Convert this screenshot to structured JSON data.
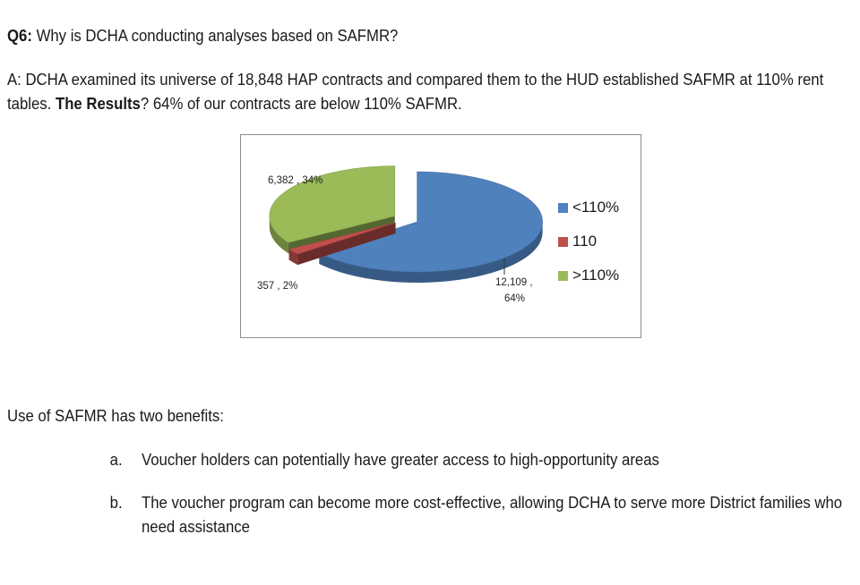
{
  "question": {
    "label": "Q6:",
    "text": " Why is DCHA conducting analyses based on SAFMR?"
  },
  "answer": {
    "text_pre": "A: DCHA examined its universe of 18,848 HAP contracts and compared them to the HUD established SAFMR at 110% rent tables. ",
    "bold": "The Results",
    "text_post": "? 64% of our contracts are below 110% SAFMR."
  },
  "chart_data": {
    "type": "pie",
    "categories": [
      "<110%",
      "110",
      ">110%"
    ],
    "values": [
      12109,
      357,
      6382
    ],
    "percents": [
      64,
      2,
      34
    ],
    "data_labels": [
      "12,109 ,",
      "357 , 2%",
      "6,382 , 34%"
    ],
    "data_label_second_line": "64%",
    "colors": [
      "#4f81bd",
      "#c0504d",
      "#9bbb59"
    ],
    "legend_position": "right",
    "style": "3d exploded"
  },
  "benefits": {
    "title": "Use of SAFMR has two benefits:",
    "items": [
      {
        "marker": "a.",
        "text": "Voucher holders can potentially have greater access to high-opportunity areas"
      },
      {
        "marker": "b.",
        "text": "The voucher program can become more cost-effective, allowing DCHA to serve more District families who need assistance"
      }
    ]
  }
}
